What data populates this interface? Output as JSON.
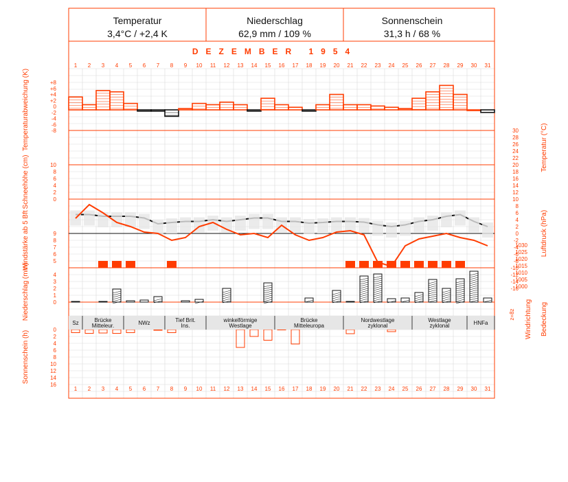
{
  "header": {
    "cells": [
      {
        "title": "Temperatur",
        "value": "3,4°C / +2,4 K"
      },
      {
        "title": "Niederschlag",
        "value": "62,9 mm / 109 %"
      },
      {
        "title": "Sonnenschein",
        "value": "31,3 h / 68 %"
      }
    ]
  },
  "month_title": "DEZEMBER 1954",
  "days": [
    "1",
    "2",
    "3",
    "4",
    "5",
    "6",
    "7",
    "8",
    "9",
    "10",
    "11",
    "12",
    "13",
    "14",
    "15",
    "16",
    "17",
    "18",
    "19",
    "20",
    "21",
    "22",
    "23",
    "24",
    "25",
    "26",
    "27",
    "28",
    "29",
    "30",
    "31"
  ],
  "axis_labels": {
    "temp_anom": "Temperaturabweichung (K)",
    "snow": "Schneehöhe (cm)",
    "wind": "Windstärke ab 5 Bft",
    "precip": "Niederschlag (mm)",
    "sun": "Sonnenschein (h)",
    "temp": "Temperatur (°C)",
    "pressure": "Luftdruck (hPa)",
    "wind_dir": "Windrichtung",
    "cloud": "Bedeckung"
  },
  "ticks": {
    "temp_anom": [
      "+8",
      "+6",
      "+4",
      "+2",
      "0",
      "-2",
      "-4",
      "-6",
      "-8"
    ],
    "snow": [
      "10",
      "8",
      "6",
      "4",
      "2",
      "0"
    ],
    "wind": [
      "9",
      "8",
      "7",
      "6",
      "5"
    ],
    "precip": [
      "4",
      "3",
      "2",
      "1",
      "0"
    ],
    "sun": [
      "0",
      "2",
      "4",
      "6",
      "8",
      "10",
      "12",
      "14",
      "16"
    ],
    "temp": [
      "30",
      "28",
      "26",
      "24",
      "22",
      "20",
      "18",
      "16",
      "14",
      "12",
      "10",
      "8",
      "6",
      "4",
      "2",
      "0",
      "-2",
      "-4",
      "-6",
      "-8",
      "-10",
      "-12",
      "-14",
      "-16"
    ],
    "pressure": [
      "1030",
      "1025",
      "1020",
      "1015",
      "1010",
      "1005",
      "1000"
    ],
    "wind_dir_short": "z=8z"
  },
  "weather_types": [
    {
      "label": "Sz",
      "start": 1,
      "end": 1
    },
    {
      "label": "Brücke Mitteleur.",
      "start": 2,
      "end": 4
    },
    {
      "label": "NWz",
      "start": 5,
      "end": 7
    },
    {
      "label": "Tief Brit. Ins.",
      "start": 8,
      "end": 10
    },
    {
      "label": "winkelförmige Westlage",
      "start": 11,
      "end": 15
    },
    {
      "label": "Brücke Mitteleuropa",
      "start": 16,
      "end": 20
    },
    {
      "label": "Nordwestlage zyklonal",
      "start": 21,
      "end": 25
    },
    {
      "label": "Westlage zyklonal",
      "start": 26,
      "end": 29
    },
    {
      "label": "HNFa",
      "start": 30,
      "end": 31
    }
  ],
  "colors": {
    "accent": "#ff3c00",
    "text": "#111111",
    "grid": "#d9d9d9",
    "shade": "#e6e6e6"
  },
  "chart_data": {
    "type": "line",
    "x": [
      1,
      2,
      3,
      4,
      5,
      6,
      7,
      8,
      9,
      10,
      11,
      12,
      13,
      14,
      15,
      16,
      17,
      18,
      19,
      20,
      21,
      22,
      23,
      24,
      25,
      26,
      27,
      28,
      29,
      30,
      31
    ],
    "series": [
      {
        "values": [
          5,
          2,
          7.5,
          7,
          2.5,
          -0.5,
          -0.5,
          -2.5,
          0.5,
          2.5,
          2,
          3,
          2,
          -0.5,
          4.5,
          2,
          1,
          -0.5,
          2,
          6,
          2,
          2,
          1.5,
          1,
          0.5,
          4.5,
          7,
          9.5,
          6,
          0,
          -1
        ]
      },
      {
        "values": [
          1.5,
          1.5,
          1,
          1,
          1,
          0.5,
          -1.2,
          -0.8,
          -0.5,
          -0.5,
          0,
          -0.5,
          0,
          0.5,
          0.5,
          -0.5,
          -0.5,
          -1,
          -0.8,
          -0.5,
          -0.5,
          -0.7,
          -1.5,
          -2,
          -1.5,
          -0.5,
          0,
          1,
          1.5,
          -0.5,
          -2
        ]
      },
      {
        "values": [
          4,
          9,
          6,
          2.5,
          1,
          -1,
          -1.5,
          -4,
          -3,
          1,
          2.5,
          0,
          -2,
          -1.5,
          -3,
          1.5,
          -2,
          -4,
          -3,
          -1,
          -0.5,
          -2,
          -12,
          -13.5,
          -6,
          -3.5,
          -2.5,
          -1.5,
          -3,
          -4,
          -6
        ]
      },
      {
        "values": [
          4.2,
          4.0,
          3.8,
          4.3,
          2.1,
          1.5,
          0.7,
          0.9,
          0,
          0.6,
          2.1,
          2.3,
          0.9,
          0,
          3.4,
          0.3,
          0.6,
          0,
          1.2,
          1.6,
          0.9,
          3.6,
          4.6,
          4.3,
          1.3,
          2.4,
          3.3,
          4.2,
          3.6,
          0.4,
          0.6
        ]
      },
      {
        "values": [
          0.1,
          0,
          0.1,
          1.9,
          0.2,
          0.3,
          0.8,
          0,
          0.2,
          0.4,
          0,
          2,
          0,
          0,
          2.8,
          0,
          0,
          0.6,
          0,
          1.7,
          0.1,
          3.8,
          4.1,
          0.5,
          0.6,
          1.4,
          3.3,
          2,
          3.4,
          4.5,
          0.6
        ]
      },
      {
        "values": [
          0.9,
          1.1,
          1.0,
          1.1,
          0.9,
          0,
          0.2,
          0.9,
          0,
          0,
          0,
          0,
          5.2,
          2,
          3.1,
          0.1,
          4.2,
          0,
          0,
          0,
          1.2,
          0,
          0,
          0.6,
          0,
          0,
          0,
          0,
          0,
          0,
          0
        ]
      }
    ],
    "weather_types": [
      "Sz",
      "Brücke Mitteleur.",
      "NWz",
      "Tief Brit. Ins.",
      "winkelförmige Westlage",
      "Brücke Mitteleuropa",
      "Nordwestlage zyklonal",
      "Westlage zyklonal",
      "HNFa"
    ]
  }
}
